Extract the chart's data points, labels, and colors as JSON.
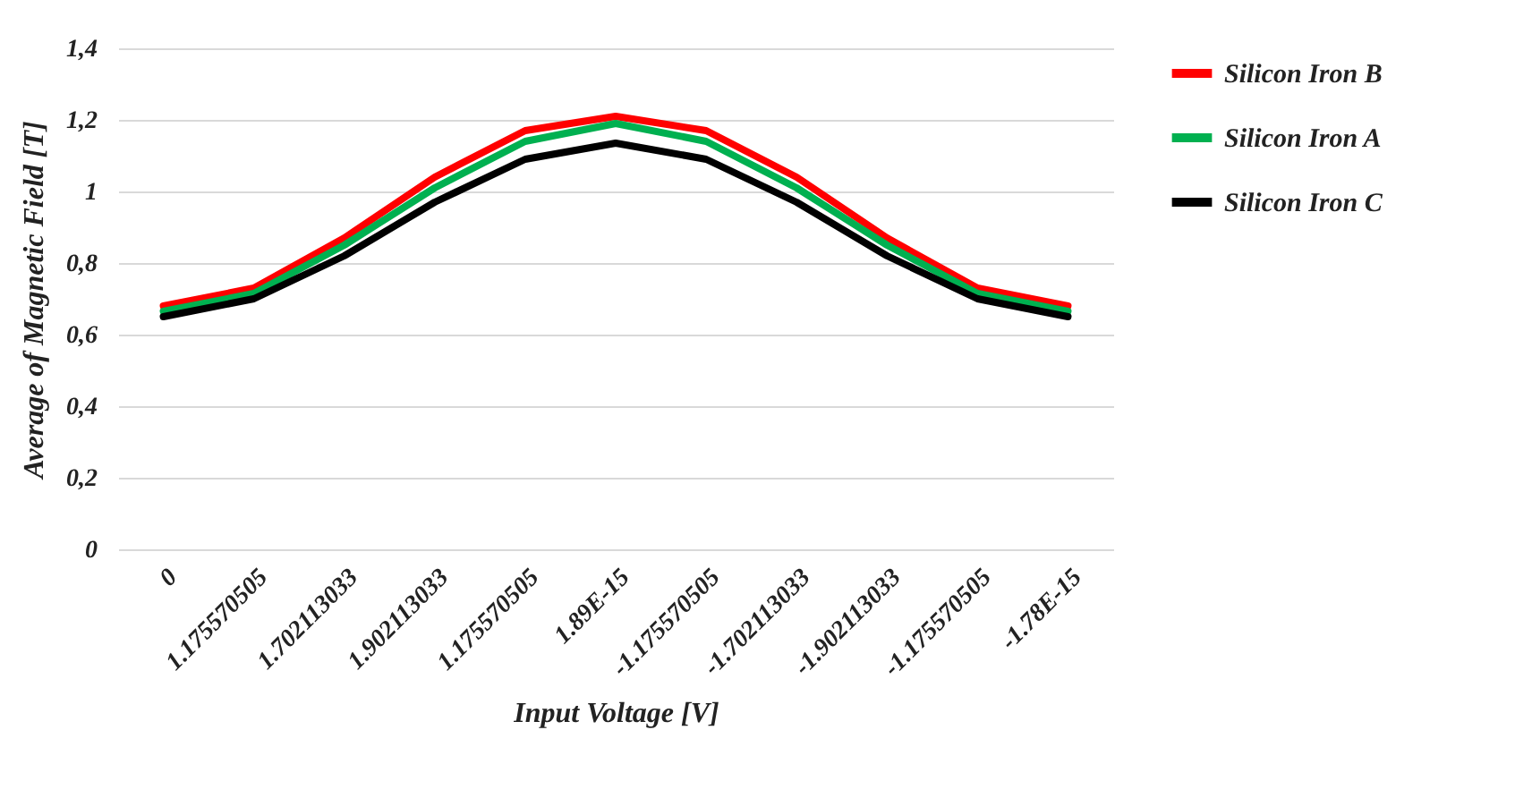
{
  "chart_data": {
    "type": "line",
    "xlabel": "Input Voltage [V]",
    "ylabel": "Average of Magnetic Field [T]",
    "categories": [
      "0",
      "1.175570505",
      "1.702113033",
      "1.902113033",
      "1.175570505",
      "1.89E-15",
      "-1.175570505",
      "-1.702113033",
      "-1.902113033",
      "-1.175570505",
      "-1.78E-15"
    ],
    "series": [
      {
        "name": "Silicon Iron B",
        "color": "#ff0000",
        "values": [
          0.68,
          0.73,
          0.87,
          1.04,
          1.17,
          1.21,
          1.17,
          1.04,
          0.87,
          0.73,
          0.68
        ]
      },
      {
        "name": "Silicon Iron A",
        "color": "#00b050",
        "values": [
          0.665,
          0.715,
          0.85,
          1.01,
          1.14,
          1.19,
          1.14,
          1.01,
          0.85,
          0.715,
          0.665
        ]
      },
      {
        "name": "Silicon Iron C",
        "color": "#000000",
        "values": [
          0.65,
          0.7,
          0.82,
          0.97,
          1.09,
          1.135,
          1.09,
          0.97,
          0.82,
          0.7,
          0.65
        ]
      }
    ],
    "ylim": [
      0,
      1.4
    ],
    "yticks": [
      "0",
      {
        "value": 0.2,
        "label": "0,2"
      },
      {
        "value": 0.4,
        "label": "0,4"
      },
      {
        "value": 0.6,
        "label": "0,6"
      },
      {
        "value": 0.8,
        "label": "0,8"
      },
      "1",
      {
        "value": 1.2,
        "label": "1,2"
      },
      {
        "value": 1.4,
        "label": "1,4"
      }
    ],
    "grid": "y",
    "legend": "right",
    "marker": "none"
  }
}
